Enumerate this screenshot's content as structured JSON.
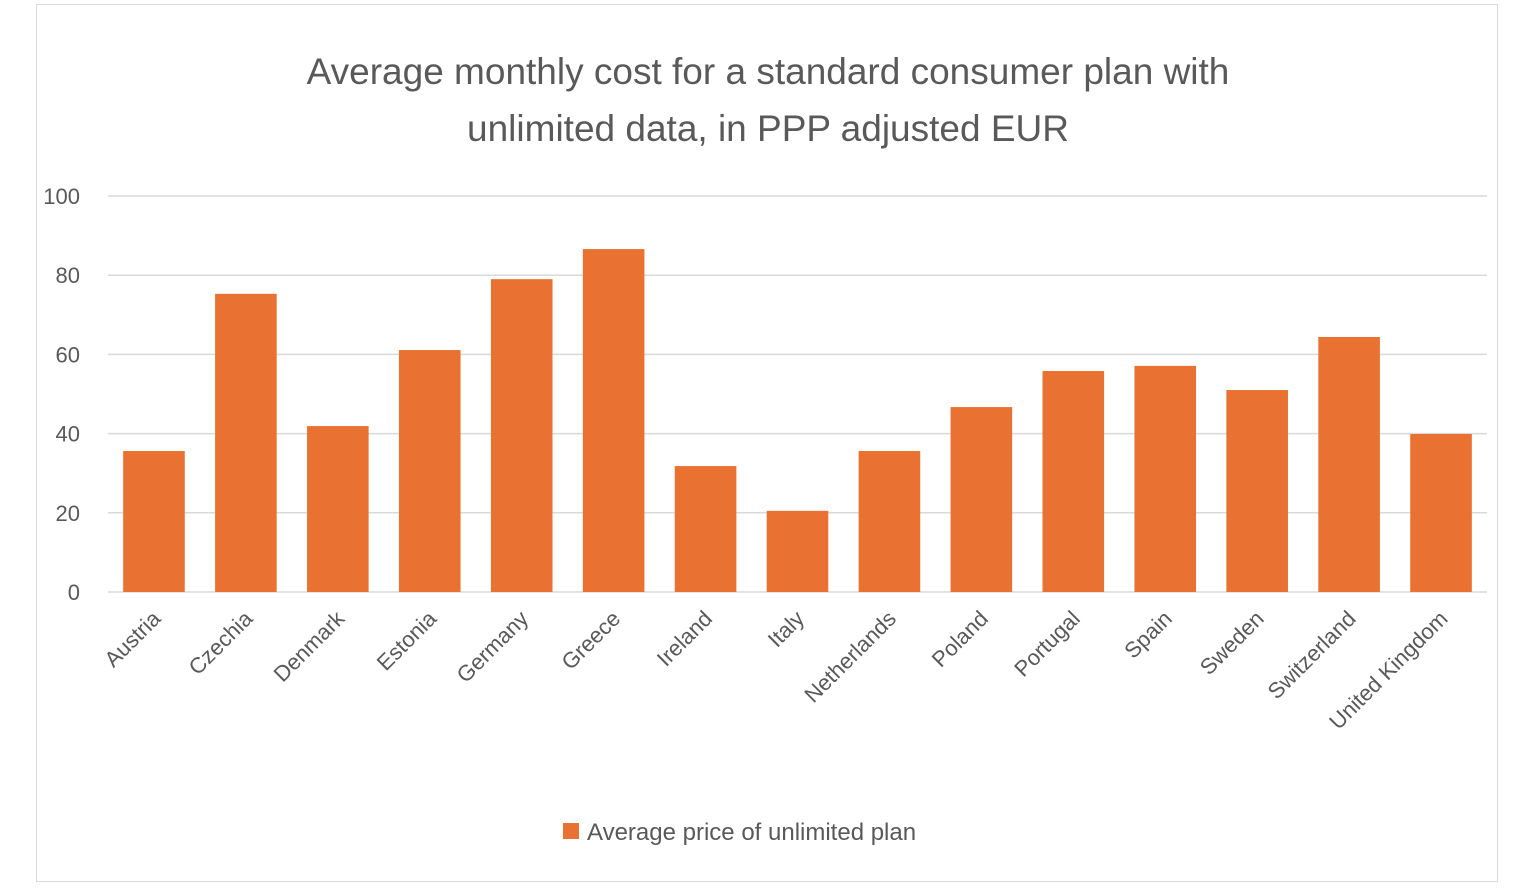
{
  "chart_data": {
    "type": "bar",
    "title": "Average monthly cost for a standard consumer plan with unlimited data, in PPP adjusted EUR",
    "title_lines": [
      "Average monthly cost for a standard consumer plan with",
      "unlimited data, in PPP adjusted EUR"
    ],
    "xlabel": "",
    "ylabel": "",
    "ylim": [
      0,
      100
    ],
    "yticks": [
      0,
      20,
      40,
      60,
      80,
      100
    ],
    "grid": true,
    "legend_position": "bottom",
    "categories": [
      "Austria",
      "Czechia",
      "Denmark",
      "Estonia",
      "Germany",
      "Greece",
      "Ireland",
      "Italy",
      "Netherlands",
      "Poland",
      "Portugal",
      "Spain",
      "Sweden",
      "Switzerland",
      "United Kingdom"
    ],
    "series": [
      {
        "name": "Average price of unlimited plan",
        "color": "#E97132",
        "values": [
          35.6,
          75.3,
          41.9,
          61.1,
          79.0,
          86.6,
          31.8,
          20.5,
          35.6,
          46.7,
          55.8,
          57.1,
          51.0,
          64.4,
          39.9
        ]
      }
    ]
  }
}
